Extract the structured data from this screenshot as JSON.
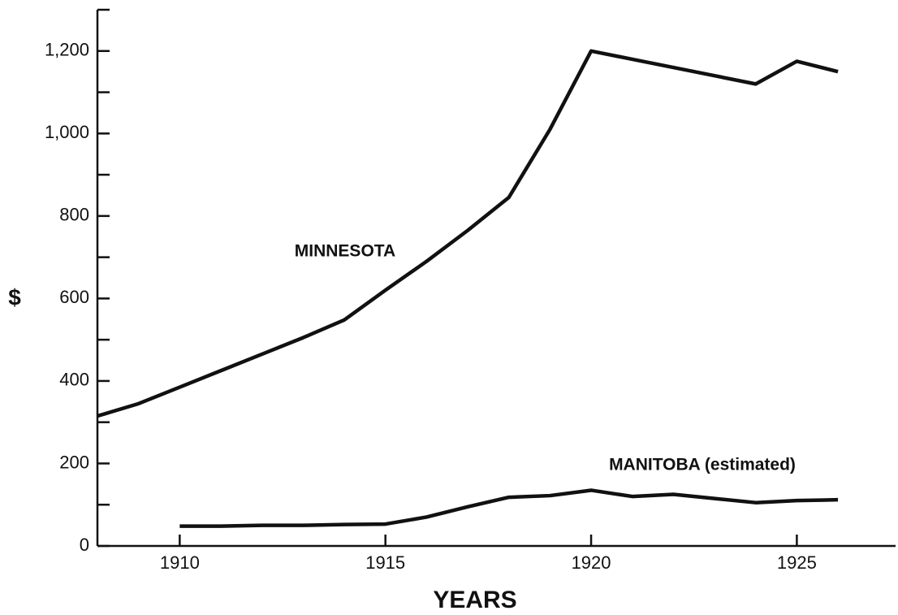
{
  "chart_data": {
    "type": "line",
    "x_label": "YEARS",
    "y_label": "$",
    "x": [
      1908,
      1909,
      1910,
      1911,
      1912,
      1913,
      1914,
      1915,
      1916,
      1917,
      1918,
      1919,
      1920,
      1921,
      1922,
      1923,
      1924,
      1925,
      1926
    ],
    "series": [
      {
        "name": "MINNESOTA",
        "color": "#111111",
        "values": [
          315,
          345,
          385,
          425,
          465,
          505,
          548,
          620,
          690,
          765,
          845,
          1010,
          1200,
          1180,
          1160,
          1140,
          1120,
          1175,
          1150
        ]
      },
      {
        "name": "MANITOBA (estimated)",
        "color": "#111111",
        "values": [
          null,
          null,
          48,
          48,
          50,
          50,
          52,
          53,
          70,
          95,
          118,
          122,
          135,
          120,
          125,
          115,
          105,
          110,
          112
        ]
      }
    ],
    "xlim": [
      1908,
      1927.4
    ],
    "xticks": [
      1910,
      1915,
      1920,
      1925
    ],
    "ylim": [
      0,
      1300
    ],
    "yticks": [
      0,
      200,
      400,
      600,
      800,
      {
        "value": 1000,
        "label": "1,000"
      },
      {
        "value": 1200,
        "label": "1,200"
      }
    ],
    "yminorticks": [
      100,
      300,
      500,
      700,
      900,
      1100,
      1300
    ]
  }
}
